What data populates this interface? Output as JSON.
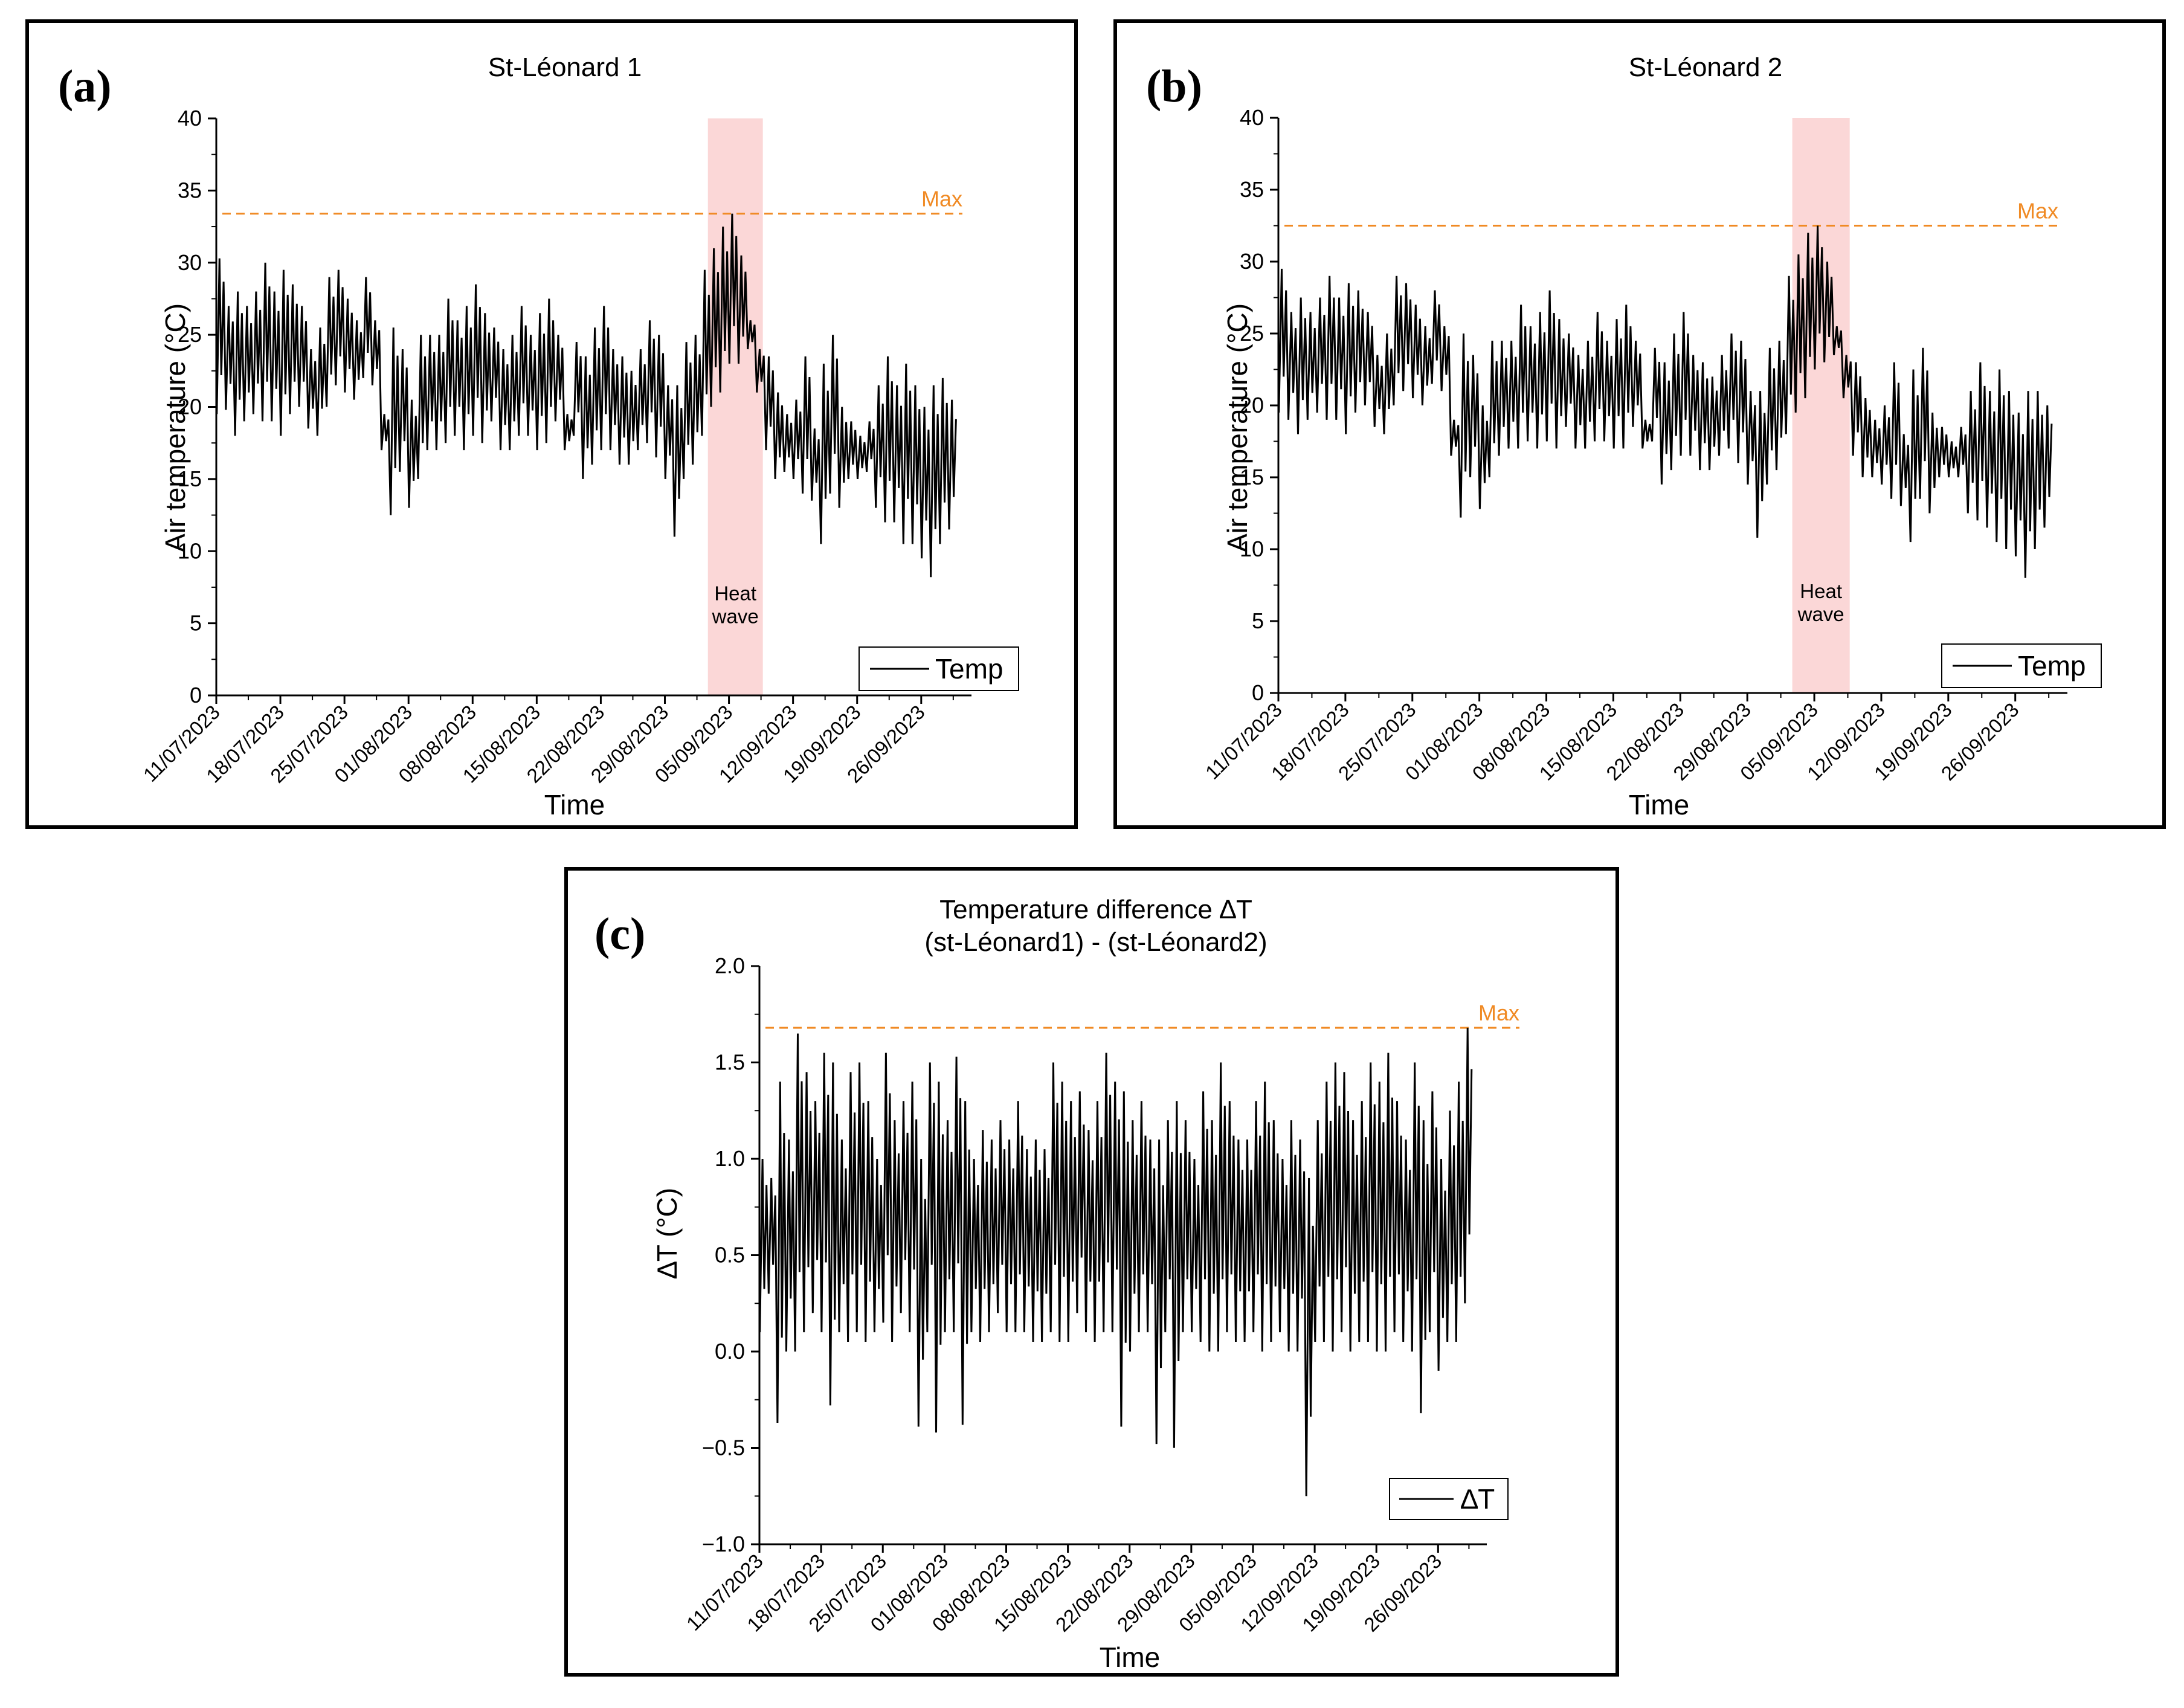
{
  "colors": {
    "line": "#000000",
    "max_line": "#f08a24",
    "heatwave_band": "#fbd7d7",
    "frame": "#000000"
  },
  "chart_data": [
    {
      "panel": "a",
      "type": "line",
      "panel_label": "(a)",
      "title": "St-Léonard 1",
      "xlabel": "Time",
      "ylabel": "Air temperature (°C)",
      "ylim": [
        0,
        40
      ],
      "yticks": [
        0,
        5,
        10,
        15,
        20,
        25,
        30,
        35,
        40
      ],
      "ytick_labels": [
        "0",
        "5",
        "10",
        "15",
        "20",
        "25",
        "30",
        "35",
        "40"
      ],
      "xlim": [
        0,
        81.5
      ],
      "xtick_days": [
        0,
        7,
        14,
        21,
        28,
        35,
        42,
        49,
        56,
        63,
        70,
        77
      ],
      "xtick_labels": [
        "11/07/2023",
        "18/07/2023",
        "25/07/2023",
        "01/08/2023",
        "08/08/2023",
        "15/08/2023",
        "22/08/2023",
        "29/08/2023",
        "05/09/2023",
        "12/09/2023",
        "19/09/2023",
        "26/09/2023"
      ],
      "max_value": 33.4,
      "max_label": "Max",
      "heatwave": {
        "start_day": 53.7,
        "end_day": 59.7,
        "label_line1": "Heat",
        "label_line2": "wave"
      },
      "legend": "Temp",
      "series": [
        {
          "name": "Temp",
          "day_min": [
            19.5,
            19.8,
            18.0,
            19.0,
            19.5,
            19.0,
            19.0,
            18.0,
            19.5,
            20.0,
            18.5,
            18.0,
            20.0,
            21.5,
            21.0,
            20.5,
            22.0,
            21.5,
            17.0,
            12.5,
            15.5,
            13.0,
            15.0,
            17.0,
            17.0,
            17.5,
            18.0,
            17.0,
            18.0,
            17.5,
            19.0,
            17.0,
            17.0,
            18.0,
            18.0,
            17.0,
            17.5,
            19.0,
            17.0,
            18.0,
            15.0,
            16.0,
            17.0,
            17.0,
            16.0,
            16.0,
            17.0,
            17.5,
            16.5,
            15.0,
            11.0,
            15.0,
            16.0,
            18.0,
            20.0,
            21.0,
            23.0,
            23.0,
            24.0,
            21.0,
            17.0,
            15.0,
            15.5,
            15.0,
            14.0,
            13.5,
            10.5,
            14.0,
            13.0,
            15.0,
            15.0,
            15.5,
            13.0,
            12.0,
            12.0,
            10.5,
            10.5,
            9.5,
            8.2,
            10.5,
            11.5
          ],
          "day_max": [
            30.3,
            27.0,
            28.0,
            27.0,
            28.0,
            30.0,
            28.0,
            29.5,
            28.5,
            27.0,
            24.0,
            25.5,
            29.0,
            29.5,
            27.5,
            26.0,
            29.0,
            26.0,
            19.5,
            25.5,
            24.0,
            20.5,
            25.0,
            25.0,
            25.0,
            27.5,
            26.0,
            27.0,
            28.5,
            26.5,
            25.5,
            24.0,
            25.0,
            27.0,
            25.0,
            26.5,
            27.5,
            25.0,
            19.5,
            24.5,
            23.5,
            25.5,
            27.0,
            24.0,
            23.5,
            22.5,
            24.0,
            26.0,
            25.0,
            21.5,
            21.5,
            24.5,
            25.0,
            29.5,
            31.0,
            32.5,
            33.4,
            30.5,
            26.0,
            24.0,
            23.5,
            21.0,
            19.5,
            20.5,
            23.5,
            18.5,
            23.0,
            25.0,
            20.0,
            19.0,
            18.0,
            19.0,
            21.5,
            23.5,
            21.5,
            23.0,
            21.5,
            20.0,
            21.5,
            22.0,
            20.5
          ]
        }
      ]
    },
    {
      "panel": "b",
      "type": "line",
      "panel_label": "(b)",
      "title": "St-Léonard 2",
      "xlabel": "Time",
      "ylabel": "Air temperature (°C)",
      "ylim": [
        0,
        40
      ],
      "yticks": [
        0,
        5,
        10,
        15,
        20,
        25,
        30,
        35,
        40
      ],
      "ytick_labels": [
        "0",
        "5",
        "10",
        "15",
        "20",
        "25",
        "30",
        "35",
        "40"
      ],
      "xlim": [
        0,
        81.5
      ],
      "xtick_days": [
        0,
        7,
        14,
        21,
        28,
        35,
        42,
        49,
        56,
        63,
        70,
        77
      ],
      "xtick_labels": [
        "11/07/2023",
        "18/07/2023",
        "25/07/2023",
        "01/08/2023",
        "08/08/2023",
        "15/08/2023",
        "22/08/2023",
        "29/08/2023",
        "05/09/2023",
        "12/09/2023",
        "19/09/2023",
        "26/09/2023"
      ],
      "max_value": 32.5,
      "max_label": "Max",
      "heatwave": {
        "start_day": 53.7,
        "end_day": 59.7,
        "label_line1": "Heat",
        "label_line2": "wave"
      },
      "legend": "Temp",
      "series": [
        {
          "name": "Temp",
          "day_min": [
            19.5,
            19.0,
            18.0,
            19.0,
            19.5,
            19.0,
            19.0,
            18.0,
            19.5,
            20.0,
            18.5,
            18.0,
            20.0,
            21.0,
            20.5,
            20.0,
            21.5,
            21.0,
            16.5,
            12.2,
            15.0,
            12.8,
            15.0,
            16.5,
            17.0,
            17.0,
            17.5,
            17.0,
            17.5,
            17.0,
            18.5,
            17.0,
            17.0,
            17.5,
            17.5,
            17.0,
            17.0,
            18.5,
            17.0,
            17.5,
            14.5,
            15.5,
            16.5,
            16.5,
            15.5,
            15.5,
            16.5,
            17.0,
            16.0,
            14.5,
            10.8,
            14.5,
            15.5,
            18.0,
            19.5,
            20.5,
            22.5,
            23.0,
            23.5,
            20.5,
            16.5,
            15.0,
            15.0,
            14.5,
            13.5,
            13.0,
            10.5,
            13.5,
            12.5,
            15.0,
            15.0,
            15.0,
            12.5,
            12.0,
            11.5,
            10.5,
            10.0,
            9.5,
            8.0,
            10.0,
            11.5
          ],
          "day_max": [
            29.5,
            26.5,
            27.5,
            26.5,
            27.5,
            29.0,
            27.5,
            28.5,
            28.0,
            26.5,
            23.5,
            25.0,
            29.0,
            28.5,
            27.0,
            25.5,
            28.0,
            25.5,
            19.0,
            25.0,
            23.5,
            20.0,
            24.5,
            24.5,
            24.5,
            27.0,
            25.5,
            26.5,
            28.0,
            26.0,
            25.0,
            23.5,
            24.5,
            26.5,
            24.5,
            26.0,
            27.0,
            24.5,
            19.0,
            24.0,
            23.0,
            25.0,
            26.5,
            23.5,
            23.0,
            22.0,
            23.5,
            25.0,
            24.5,
            21.0,
            21.0,
            24.0,
            24.5,
            29.0,
            30.5,
            32.0,
            32.5,
            30.0,
            25.5,
            23.5,
            23.0,
            20.5,
            19.0,
            20.0,
            23.0,
            18.0,
            22.5,
            24.0,
            19.5,
            18.5,
            17.5,
            18.5,
            21.0,
            23.0,
            21.0,
            22.5,
            21.0,
            19.5,
            21.0,
            21.0,
            20.0
          ]
        }
      ]
    },
    {
      "panel": "c",
      "type": "line",
      "panel_label": "(c)",
      "title_line1": "Temperature difference ∆T",
      "title_line2": "(st-Léonard1) - (st-Léonard2)",
      "xlabel": "Time",
      "ylabel": "∆T (°C)",
      "ylim": [
        -1.0,
        2.0
      ],
      "yticks": [
        -1.0,
        -0.5,
        0.0,
        0.5,
        1.0,
        1.5,
        2.0
      ],
      "ytick_labels": [
        "−1.0",
        "−0.5",
        "0.0",
        "0.5",
        "1.0",
        "1.5",
        "2.0"
      ],
      "xlim": [
        0,
        81.5
      ],
      "xtick_days": [
        0,
        7,
        14,
        21,
        28,
        35,
        42,
        49,
        56,
        63,
        70,
        77
      ],
      "xtick_labels": [
        "11/07/2023",
        "18/07/2023",
        "25/07/2023",
        "01/08/2023",
        "08/08/2023",
        "15/08/2023",
        "22/08/2023",
        "29/08/2023",
        "05/09/2023",
        "12/09/2023",
        "19/09/2023",
        "26/09/2023"
      ],
      "max_value": 1.68,
      "max_label": "Max",
      "legend": "∆T",
      "series": [
        {
          "name": "∆T",
          "day_min": [
            0.1,
            0.3,
            -0.37,
            0.0,
            0.0,
            0.1,
            0.2,
            0.1,
            -0.28,
            0.1,
            0.05,
            0.1,
            0.05,
            0.1,
            0.15,
            0.05,
            0.2,
            0.1,
            -0.39,
            0.1,
            -0.42,
            0.1,
            0.1,
            -0.38,
            0.1,
            0.05,
            0.1,
            0.2,
            0.1,
            0.1,
            0.1,
            0.05,
            0.05,
            0.1,
            0.05,
            0.05,
            0.2,
            0.1,
            0.05,
            0.1,
            0.1,
            -0.39,
            0.0,
            0.1,
            0.1,
            -0.48,
            0.1,
            -0.5,
            0.1,
            0.1,
            0.05,
            0.0,
            0.0,
            0.1,
            0.05,
            0.05,
            0.1,
            0.0,
            0.05,
            0.1,
            0.0,
            0.0,
            -0.75,
            0.05,
            0.05,
            0.0,
            0.1,
            0.0,
            0.05,
            0.05,
            0.0,
            0.0,
            0.1,
            0.05,
            0.0,
            -0.32,
            0.1,
            -0.1,
            0.05,
            0.05,
            0.25
          ],
          "day_max": [
            1.0,
            0.9,
            1.4,
            1.1,
            1.65,
            1.45,
            1.3,
            1.55,
            1.5,
            1.1,
            1.45,
            1.5,
            1.3,
            1.0,
            1.55,
            1.2,
            1.3,
            1.4,
            1.0,
            1.5,
            1.4,
            1.2,
            1.53,
            1.3,
            1.0,
            1.15,
            1.1,
            1.2,
            1.1,
            1.3,
            1.05,
            1.1,
            1.05,
            1.5,
            1.4,
            1.3,
            1.35,
            1.15,
            1.3,
            1.55,
            1.4,
            1.35,
            1.2,
            1.3,
            1.1,
            1.1,
            1.2,
            1.3,
            1.2,
            1.0,
            1.35,
            1.2,
            1.5,
            1.3,
            1.1,
            1.1,
            1.3,
            1.4,
            1.2,
            1.0,
            1.2,
            1.1,
            0.9,
            1.2,
            1.4,
            1.5,
            1.45,
            1.2,
            1.3,
            1.5,
            1.4,
            1.55,
            1.3,
            1.1,
            1.5,
            1.2,
            1.35,
            1.0,
            1.25,
            1.4,
            1.68
          ]
        }
      ]
    }
  ]
}
